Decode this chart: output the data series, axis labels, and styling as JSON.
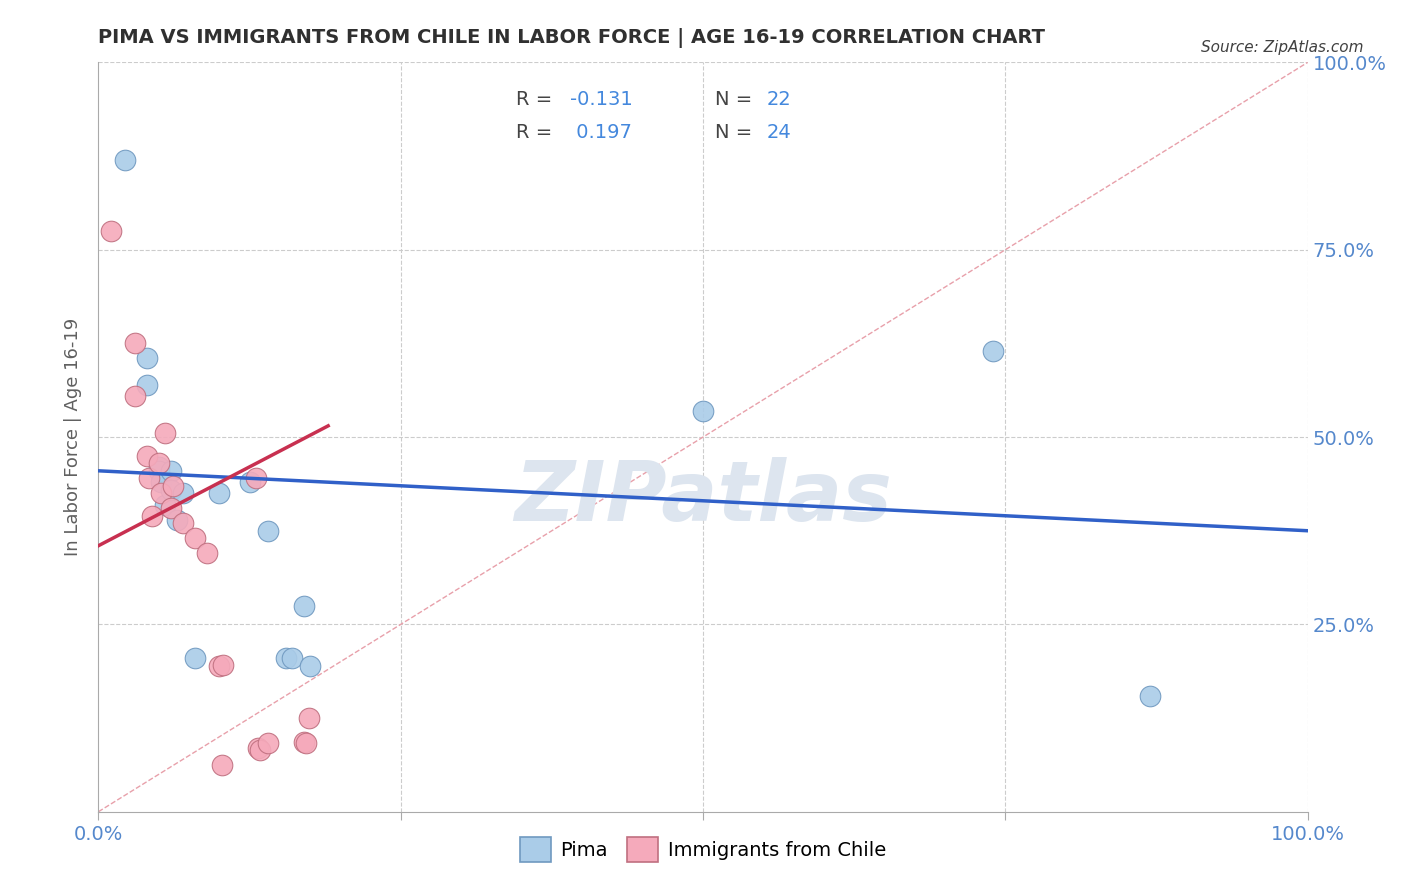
{
  "title": "PIMA VS IMMIGRANTS FROM CHILE IN LABOR FORCE | AGE 16-19 CORRELATION CHART",
  "source": "Source: ZipAtlas.com",
  "ylabel": "In Labor Force | Age 16-19",
  "legend_blue_r": "-0.131",
  "legend_blue_n": "22",
  "legend_pink_r": "0.197",
  "legend_pink_n": "24",
  "blue_scatter_color": "#aacce8",
  "blue_scatter_edge": "#7099c0",
  "pink_scatter_color": "#f5aabb",
  "pink_scatter_edge": "#c07080",
  "blue_line_color": "#3060c8",
  "pink_line_color": "#c83050",
  "diagonal_color": "#e8a0aa",
  "grid_color": "#cccccc",
  "title_color": "#303030",
  "right_tick_color": "#5588cc",
  "bottom_tick_color": "#5588cc",
  "watermark_color": "#dde5ef",
  "source_color": "#404040",
  "pima_x": [
    0.022,
    0.04,
    0.04,
    0.05,
    0.05,
    0.052,
    0.055,
    0.06,
    0.06,
    0.065,
    0.07,
    0.08,
    0.1,
    0.125,
    0.14,
    0.155,
    0.16,
    0.17,
    0.175,
    0.5,
    0.74,
    0.87
  ],
  "pima_y": [
    0.87,
    0.605,
    0.57,
    0.46,
    0.455,
    0.44,
    0.41,
    0.455,
    0.43,
    0.39,
    0.425,
    0.205,
    0.425,
    0.44,
    0.375,
    0.205,
    0.205,
    0.275,
    0.195,
    0.535,
    0.615,
    0.155
  ],
  "chile_x": [
    0.01,
    0.03,
    0.03,
    0.04,
    0.042,
    0.044,
    0.05,
    0.052,
    0.06,
    0.07,
    0.08,
    0.09,
    0.1,
    0.103,
    0.13,
    0.132,
    0.134,
    0.14,
    0.17,
    0.172,
    0.174,
    0.055,
    0.062,
    0.102
  ],
  "chile_y": [
    0.775,
    0.625,
    0.555,
    0.475,
    0.445,
    0.395,
    0.465,
    0.425,
    0.405,
    0.385,
    0.365,
    0.345,
    0.195,
    0.196,
    0.445,
    0.085,
    0.082,
    0.092,
    0.093,
    0.092,
    0.125,
    0.505,
    0.435,
    0.062
  ],
  "pima_trend_x0": 0.0,
  "pima_trend_x1": 1.0,
  "pima_trend_y0": 0.455,
  "pima_trend_y1": 0.375,
  "chile_trend_x0": 0.0,
  "chile_trend_x1": 0.19,
  "chile_trend_y0": 0.355,
  "chile_trend_y1": 0.515,
  "xlim": [
    0.0,
    1.0
  ],
  "ylim": [
    0.0,
    1.0
  ],
  "yticks": [
    0.0,
    0.25,
    0.5,
    0.75,
    1.0
  ],
  "ytick_right_labels": [
    "",
    "25.0%",
    "50.0%",
    "75.0%",
    "100.0%"
  ],
  "xticks": [
    0.0,
    0.25,
    0.5,
    0.75,
    1.0
  ],
  "xtick_labels": [
    "0.0%",
    "",
    "",
    "",
    "100.0%"
  ],
  "grid_yticks": [
    0.25,
    0.5,
    0.75,
    1.0
  ],
  "grid_xticks": [
    0.25,
    0.5,
    0.75,
    1.0
  ]
}
